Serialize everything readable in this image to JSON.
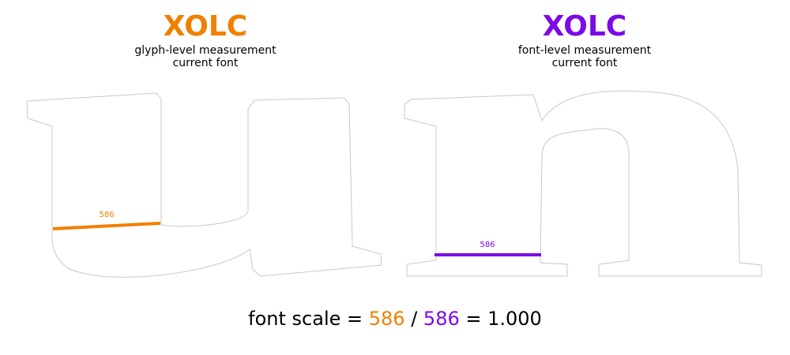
{
  "colors": {
    "glyph": "#f08000",
    "font": "#7c0ae6",
    "outline": "#c8c8c8"
  },
  "left_panel": {
    "code": "XOLC",
    "line1": "glyph-level measurement",
    "line2": "current font",
    "measure_label": "586"
  },
  "right_panel": {
    "code": "XOLC",
    "line1": "font-level measurement",
    "line2": "current font",
    "measure_label": "586"
  },
  "formula": {
    "prefix": "font scale = ",
    "numerator": "586",
    "divider": " / ",
    "denominator": "586",
    "equals": " = ",
    "result": "1.000"
  }
}
